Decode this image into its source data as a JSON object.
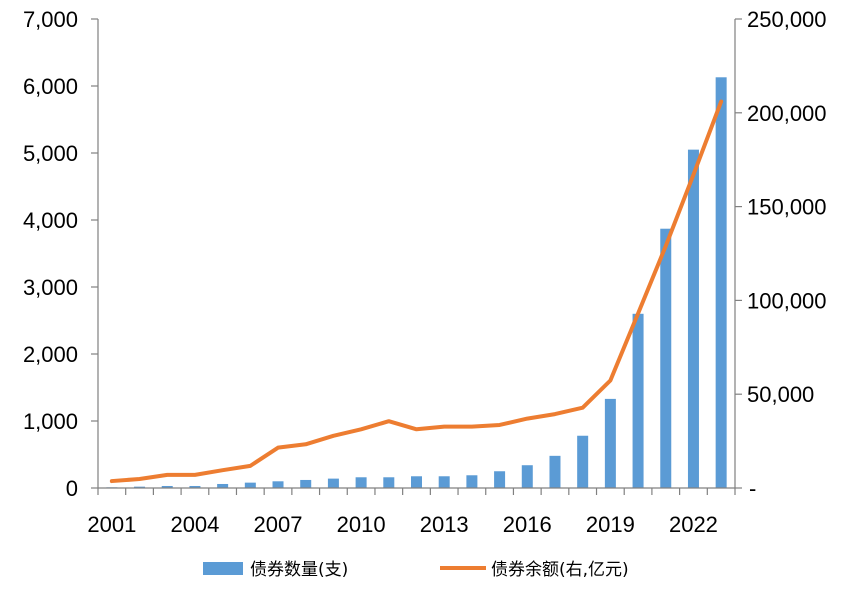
{
  "chart_data": {
    "type": "bar+line",
    "title": "",
    "xlabel": "",
    "ylabel_left": "",
    "ylabel_right": "",
    "x": [
      2001,
      2002,
      2003,
      2004,
      2005,
      2006,
      2007,
      2008,
      2009,
      2010,
      2011,
      2012,
      2013,
      2014,
      2015,
      2016,
      2017,
      2018,
      2019,
      2020,
      2021,
      2022,
      2023
    ],
    "x_tick_labels": [
      "2001",
      "2004",
      "2007",
      "2010",
      "2013",
      "2016",
      "2019",
      "2022"
    ],
    "y_left": {
      "min": 0,
      "max": 7000,
      "ticks": [
        "0",
        "1,000",
        "2,000",
        "3,000",
        "4,000",
        "5,000",
        "6,000",
        "7,000"
      ]
    },
    "y_right": {
      "min": 0,
      "max": 250000,
      "ticks": [
        "-",
        "50,000",
        "100,000",
        "150,000",
        "200,000",
        "250,000"
      ]
    },
    "legend_position": "bottom",
    "grid": false,
    "series": [
      {
        "name": "债券数量(支)",
        "type": "bar",
        "axis": "left",
        "color": "#5b9bd5",
        "values": [
          10,
          20,
          30,
          30,
          60,
          80,
          100,
          120,
          140,
          160,
          160,
          175,
          175,
          190,
          250,
          340,
          480,
          780,
          1330,
          2600,
          3870,
          5050,
          6130
        ]
      },
      {
        "name": "债券余额(右,亿元)",
        "type": "line",
        "axis": "right",
        "color": "#ed7d31",
        "values": [
          3700,
          4800,
          7000,
          7000,
          9500,
          11800,
          21500,
          23300,
          27800,
          31300,
          35600,
          31300,
          32700,
          32700,
          33600,
          37000,
          39400,
          42800,
          57300,
          93000,
          129000,
          167000,
          206000
        ]
      }
    ]
  }
}
